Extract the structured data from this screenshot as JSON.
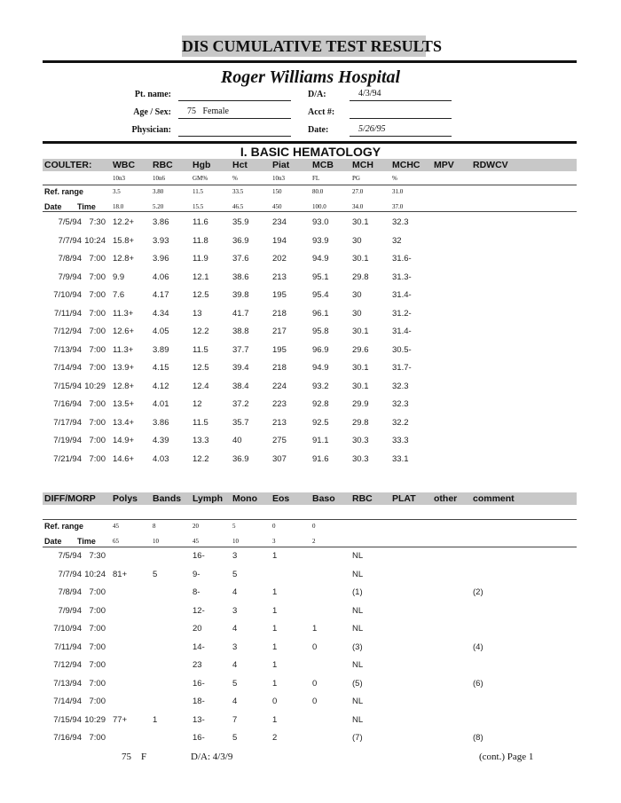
{
  "title": "DIS CUMULATIVE TEST RESULTS",
  "hospital": "Roger Williams Hospital",
  "fields": {
    "pt_name_label": "Pt. name:",
    "pt_name": "",
    "age_sex_label": "Age / Sex:",
    "age_sex": "75   Female",
    "physician_label": "Physician:",
    "physician": "",
    "da_label": "D/A:",
    "da": "4/3/94",
    "acct_label": "Acct #:",
    "acct": "",
    "date_label": "Date:",
    "date": "5/26/95"
  },
  "section_title": "I. BASIC HEMATOLOGY",
  "hematology": {
    "headers": [
      "COULTER:",
      "WBC",
      "RBC",
      "Hgb",
      "Hct",
      "Piat",
      "MCB",
      "MCH",
      "MCHC",
      "MPV",
      "RDWCV"
    ],
    "units": [
      "10n3",
      "10n6",
      "GM%",
      "%",
      "10n3",
      "FL",
      "PG",
      "%"
    ],
    "ref_label": "Ref. range",
    "ref_low": [
      "3.5",
      "3.80",
      "11.5",
      "33.5",
      "150",
      "80.0",
      "27.0",
      "31.0"
    ],
    "date_label": "Date",
    "time_label": "Time",
    "ref_high": [
      "18.0",
      "5.20",
      "15.5",
      "46.5",
      "450",
      "100.0",
      "34.0",
      "37.0"
    ],
    "rows": [
      [
        "7/5/94",
        "7:30",
        "12.2+",
        "3.86",
        "11.6",
        "35.9",
        "234",
        "93.0",
        "30.1",
        "32.3"
      ],
      [
        "7/7/94",
        "10:24",
        "15.8+",
        "3.93",
        "11.8",
        "36.9",
        "194",
        "93.9",
        "30",
        "32"
      ],
      [
        "7/8/94",
        "7:00",
        "12.8+",
        "3.96",
        "11.9",
        "37.6",
        "202",
        "94.9",
        "30.1",
        "31.6-"
      ],
      [
        "7/9/94",
        "7:00",
        "9.9",
        "4.06",
        "12.1",
        "38.6",
        "213",
        "95.1",
        "29.8",
        "31.3-"
      ],
      [
        "7/10/94",
        "7:00",
        "7.6",
        "4.17",
        "12.5",
        "39.8",
        "195",
        "95.4",
        "30",
        "31.4-"
      ],
      [
        "7/11/94",
        "7:00",
        "11.3+",
        "4.34",
        "13",
        "41.7",
        "218",
        "96.1",
        "30",
        "31.2-"
      ],
      [
        "7/12/94",
        "7:00",
        "12.6+",
        "4.05",
        "12.2",
        "38.8",
        "217",
        "95.8",
        "30.1",
        "31.4-"
      ],
      [
        "7/13/94",
        "7:00",
        "11.3+",
        "3.89",
        "11.5",
        "37.7",
        "195",
        "96.9",
        "29.6",
        "30.5-"
      ],
      [
        "7/14/94",
        "7:00",
        "13.9+",
        "4.15",
        "12.5",
        "39.4",
        "218",
        "94.9",
        "30.1",
        "31.7-"
      ],
      [
        "7/15/94",
        "10:29",
        "12.8+",
        "4.12",
        "12.4",
        "38.4",
        "224",
        "93.2",
        "30.1",
        "32.3"
      ],
      [
        "7/16/94",
        "7:00",
        "13.5+",
        "4.01",
        "12",
        "37.2",
        "223",
        "92.8",
        "29.9",
        "32.3"
      ],
      [
        "7/17/94",
        "7:00",
        "13.4+",
        "3.86",
        "11.5",
        "35.7",
        "213",
        "92.5",
        "29.8",
        "32.2"
      ],
      [
        "7/19/94",
        "7:00",
        "14.9+",
        "4.39",
        "13.3",
        "40",
        "275",
        "91.1",
        "30.3",
        "33.3"
      ],
      [
        "7/21/94",
        "7:00",
        "14.6+",
        "4.03",
        "12.2",
        "36.9",
        "307",
        "91.6",
        "30.3",
        "33.1"
      ]
    ]
  },
  "diff": {
    "headers": [
      "DIFF/MORP",
      "Polys",
      "Bands",
      "Lymph",
      "Mono",
      "Eos",
      "Baso",
      "RBC",
      "PLAT",
      "other",
      "comment"
    ],
    "ref_label": "Ref. range",
    "ref_low": [
      "45",
      "8",
      "20",
      "5",
      "0",
      "0"
    ],
    "date_label": "Date",
    "time_label": "Time",
    "ref_high": [
      "65",
      "10",
      "45",
      "10",
      "3",
      "2"
    ],
    "rows": [
      [
        "7/5/94",
        "7:30",
        "",
        "",
        "16-",
        "3",
        "1",
        "",
        "NL",
        "",
        "",
        ""
      ],
      [
        "7/7/94",
        "10:24",
        "81+",
        "5",
        "9-",
        "5",
        "",
        "",
        "NL",
        "",
        "",
        ""
      ],
      [
        "7/8/94",
        "7:00",
        "",
        "",
        "8-",
        "4",
        "1",
        "",
        "(1)",
        "",
        "",
        "(2)"
      ],
      [
        "7/9/94",
        "7:00",
        "",
        "",
        "12-",
        "3",
        "1",
        "",
        "NL",
        "",
        "",
        ""
      ],
      [
        "7/10/94",
        "7:00",
        "",
        "",
        "20",
        "4",
        "1",
        "1",
        "NL",
        "",
        "",
        ""
      ],
      [
        "7/11/94",
        "7:00",
        "",
        "",
        "14-",
        "3",
        "1",
        "0",
        "(3)",
        "",
        "",
        "(4)"
      ],
      [
        "7/12/94",
        "7:00",
        "",
        "",
        "23",
        "4",
        "1",
        "",
        "NL",
        "",
        "",
        ""
      ],
      [
        "7/13/94",
        "7:00",
        "",
        "",
        "16-",
        "5",
        "1",
        "0",
        "(5)",
        "",
        "",
        "(6)"
      ],
      [
        "7/14/94",
        "7:00",
        "",
        "",
        "18-",
        "4",
        "0",
        "0",
        "NL",
        "",
        "",
        ""
      ],
      [
        "7/15/94",
        "10:29",
        "77+",
        "1",
        "13-",
        "7",
        "1",
        "",
        "NL",
        "",
        "",
        ""
      ],
      [
        "7/16/94",
        "7:00",
        "",
        "",
        "16-",
        "5",
        "2",
        "",
        "(7)",
        "",
        "",
        "(8)"
      ]
    ]
  },
  "footer": {
    "age_sex": "75    F",
    "da": "D/A: 4/3/9",
    "page": "(cont.) Page 1"
  }
}
